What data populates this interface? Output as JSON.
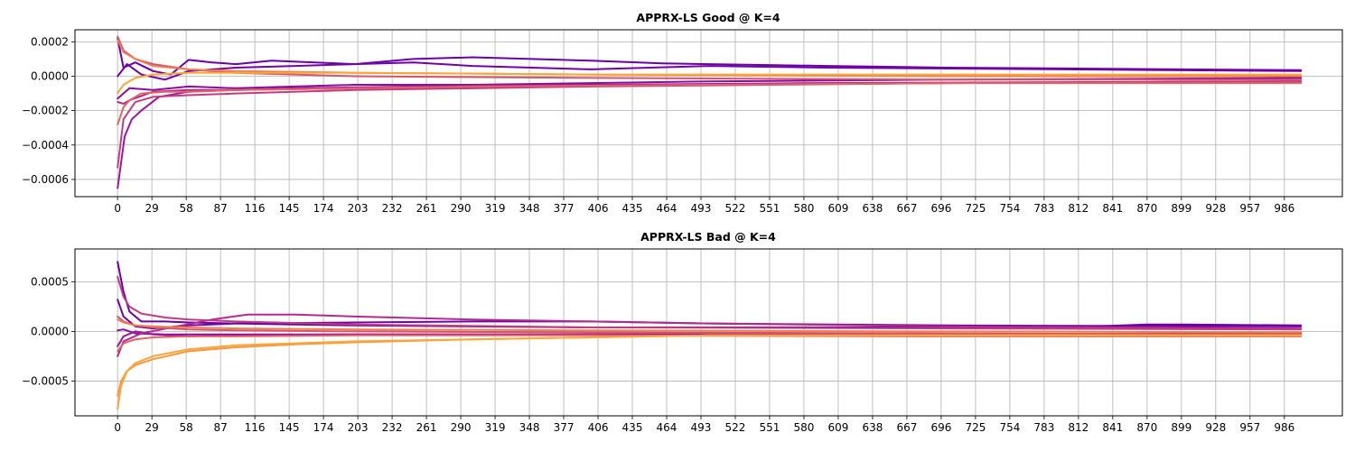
{
  "chart_data": [
    {
      "type": "line",
      "title": "APPRX-LS Good @ K=4",
      "xlabel": "",
      "ylabel": "",
      "xlim": [
        -36,
        1035
      ],
      "ylim": [
        -0.0007,
        0.00027
      ],
      "x_ticks": [
        0,
        29,
        58,
        87,
        116,
        145,
        174,
        203,
        232,
        261,
        290,
        319,
        348,
        377,
        406,
        435,
        464,
        493,
        522,
        551,
        580,
        609,
        638,
        667,
        696,
        725,
        754,
        783,
        812,
        841,
        870,
        899,
        928,
        957,
        986
      ],
      "y_ticks": [
        0.0002,
        0.0,
        -0.0002,
        -0.0004,
        -0.0006
      ],
      "y_tick_labels": [
        "0.0002",
        "0.0000",
        "−0.0002",
        "−0.0004",
        "−0.0006"
      ],
      "grid": true,
      "colormap": "plasma",
      "series": [
        {
          "color": "#6a00a8",
          "x": [
            0,
            5,
            15,
            30,
            45,
            60,
            80,
            100,
            130,
            200,
            250,
            300,
            350,
            400,
            460,
            500,
            550,
            600,
            700,
            800,
            900,
            1000
          ],
          "y": [
            0.00022,
            5e-05,
            8e-05,
            3e-05,
            1e-05,
            9.5e-05,
            8e-05,
            7e-05,
            9e-05,
            7e-05,
            0.0001,
            0.00011,
            0.0001,
            9e-05,
            7.5e-05,
            7e-05,
            6.5e-05,
            6e-05,
            5e-05,
            4.5e-05,
            4e-05,
            3.5e-05
          ]
        },
        {
          "color": "#7201a8",
          "x": [
            0,
            8,
            20,
            40,
            60,
            100,
            150,
            200,
            250,
            300,
            400,
            500,
            600,
            800,
            1000
          ],
          "y": [
            0.0,
            7e-05,
            1e-05,
            -2e-05,
            3e-05,
            5e-05,
            6e-05,
            7e-05,
            8e-05,
            6e-05,
            4e-05,
            6e-05,
            5e-05,
            4e-05,
            3e-05
          ]
        },
        {
          "color": "#8a0da3",
          "x": [
            0,
            10,
            30,
            60,
            100,
            150,
            200,
            300,
            400,
            500,
            700,
            1000
          ],
          "y": [
            -0.00013,
            -7e-05,
            -8e-05,
            -6e-05,
            -7e-05,
            -6e-05,
            -5e-05,
            -5e-05,
            -4e-05,
            -3e-05,
            -2e-05,
            -1e-05
          ]
        },
        {
          "color": "#9c179e",
          "x": [
            0,
            6,
            12,
            20,
            35,
            60,
            100,
            150,
            250,
            400,
            600,
            1000
          ],
          "y": [
            -0.00065,
            -0.00035,
            -0.00025,
            -0.0002,
            -0.00012,
            -9e-05,
            -8e-05,
            -7e-05,
            -6e-05,
            -5e-05,
            -4e-05,
            -3e-05
          ]
        },
        {
          "color": "#b12a90",
          "x": [
            0,
            5,
            10,
            30,
            60,
            100,
            200,
            300,
            500,
            700,
            1000
          ],
          "y": [
            -0.00015,
            -0.00016,
            -0.00014,
            -9e-05,
            -8e-05,
            -8e-05,
            -7e-05,
            -6e-05,
            -5e-05,
            -4e-05,
            -3e-05
          ]
        },
        {
          "color": "#c23c81",
          "x": [
            0,
            5,
            15,
            30,
            60,
            100,
            200,
            400,
            700,
            1000
          ],
          "y": [
            -0.00053,
            -0.00025,
            -0.00015,
            -0.00012,
            -0.00011,
            -0.0001,
            -8e-05,
            -6e-05,
            -4e-05,
            -3e-05
          ]
        },
        {
          "color": "#d5546e",
          "x": [
            0,
            5,
            15,
            30,
            60,
            100,
            200,
            400,
            700,
            1000
          ],
          "y": [
            0.00023,
            0.00015,
            0.0001,
            7e-05,
            4e-05,
            2e-05,
            0.0,
            -1e-05,
            -2e-05,
            -2e-05
          ]
        },
        {
          "color": "#e16462",
          "x": [
            0,
            5,
            10,
            20,
            40,
            60,
            100,
            200,
            300,
            500,
            700,
            1000
          ],
          "y": [
            -0.00028,
            -0.00018,
            -0.00014,
            -0.0001,
            -9e-05,
            -9e-05,
            -8e-05,
            -7e-05,
            -6e-05,
            -5e-05,
            -4e-05,
            -4e-05
          ]
        },
        {
          "color": "#f07f4f",
          "x": [
            0,
            5,
            15,
            30,
            60,
            100,
            200,
            400,
            700,
            1000
          ],
          "y": [
            0.00021,
            0.00014,
            0.0001,
            6e-05,
            4e-05,
            3e-05,
            2e-05,
            1e-05,
            0.0,
            0.0
          ]
        },
        {
          "color": "#fca636",
          "x": [
            0,
            5,
            15,
            30,
            60,
            100,
            200,
            400,
            700,
            1000
          ],
          "y": [
            -0.0001,
            -5e-05,
            -1e-05,
            1e-05,
            2e-05,
            2e-05,
            2e-05,
            1e-05,
            1e-05,
            1e-05
          ]
        }
      ]
    },
    {
      "type": "line",
      "title": "APPRX-LS Bad @ K=4",
      "xlabel": "",
      "ylabel": "",
      "xlim": [
        -36,
        1035
      ],
      "ylim": [
        -0.00085,
        0.00083
      ],
      "x_ticks": [
        0,
        29,
        58,
        87,
        116,
        145,
        174,
        203,
        232,
        261,
        290,
        319,
        348,
        377,
        406,
        435,
        464,
        493,
        522,
        551,
        580,
        609,
        638,
        667,
        696,
        725,
        754,
        783,
        812,
        841,
        870,
        899,
        928,
        957,
        986
      ],
      "y_ticks": [
        0.0005,
        0.0,
        -0.0005
      ],
      "y_tick_labels": [
        "0.0005",
        "0.0000",
        "−0.0005"
      ],
      "grid": true,
      "colormap": "plasma",
      "series": [
        {
          "color": "#6a00a8",
          "x": [
            0,
            5,
            10,
            20,
            40,
            60,
            100,
            150,
            200,
            300,
            400,
            500,
            600,
            800,
            870,
            900,
            1000
          ],
          "y": [
            0.0007,
            0.0004,
            0.0002,
            0.0001,
            0.0001,
            9e-05,
            8e-05,
            7e-05,
            6e-05,
            5e-05,
            4e-05,
            4e-05,
            4e-05,
            4e-05,
            7e-05,
            7e-05,
            6e-05
          ]
        },
        {
          "color": "#7201a8",
          "x": [
            0,
            5,
            15,
            30,
            60,
            100,
            200,
            300,
            400,
            500,
            700,
            1000
          ],
          "y": [
            0.00032,
            0.00015,
            5e-05,
            3e-05,
            6e-05,
            8e-05,
            9e-05,
            0.0001,
            0.0001,
            8e-05,
            6e-05,
            5e-05
          ]
        },
        {
          "color": "#8a0da3",
          "x": [
            0,
            5,
            15,
            40,
            80,
            150,
            300,
            500,
            700,
            1000
          ],
          "y": [
            1e-05,
            2e-05,
            -2e-05,
            -3e-05,
            -3e-05,
            -3e-05,
            -3e-05,
            -3e-05,
            -3e-05,
            -3e-05
          ]
        },
        {
          "color": "#9c179e",
          "x": [
            0,
            5,
            15,
            30,
            60,
            100,
            200,
            400,
            700,
            1000
          ],
          "y": [
            -0.00015,
            -5e-05,
            0.0,
            -3e-05,
            -5e-05,
            -4e-05,
            -3e-05,
            -3e-05,
            -3e-05,
            -2e-05
          ]
        },
        {
          "color": "#b12a90",
          "x": [
            0,
            5,
            20,
            50,
            80,
            110,
            150,
            200,
            300,
            400,
            500,
            700,
            1000
          ],
          "y": [
            -0.00025,
            -0.0001,
            -2e-05,
            5e-05,
            0.00012,
            0.00017,
            0.00017,
            0.00015,
            0.00012,
            0.0001,
            8e-05,
            5e-05,
            3e-05
          ]
        },
        {
          "color": "#c23c81",
          "x": [
            0,
            5,
            10,
            20,
            40,
            60,
            100,
            200,
            400,
            700,
            1000
          ],
          "y": [
            0.00055,
            0.00035,
            0.00025,
            0.00018,
            0.00014,
            0.00012,
            0.0001,
            7e-05,
            4e-05,
            3e-05,
            2e-05
          ]
        },
        {
          "color": "#d5546e",
          "x": [
            0,
            5,
            15,
            30,
            60,
            100,
            200,
            400,
            700,
            1000
          ],
          "y": [
            0.00015,
            0.0001,
            6e-05,
            4e-05,
            2e-05,
            1e-05,
            0.0,
            -1e-05,
            -2e-05,
            -3e-05
          ]
        },
        {
          "color": "#e16462",
          "x": [
            0,
            5,
            15,
            30,
            60,
            100,
            200,
            400,
            700,
            1000
          ],
          "y": [
            -0.0002,
            -0.00012,
            -8e-05,
            -6e-05,
            -5e-05,
            -5e-05,
            -4e-05,
            -4e-05,
            -5e-05,
            -5e-05
          ]
        },
        {
          "color": "#f07f4f",
          "x": [
            0,
            5,
            15,
            30,
            60,
            100,
            200,
            400,
            700,
            1000
          ],
          "y": [
            0.00012,
            9e-05,
            6e-05,
            5e-05,
            4e-05,
            3e-05,
            2e-05,
            1e-05,
            0.0,
            -1e-05
          ]
        },
        {
          "color": "#f89540",
          "x": [
            0,
            3,
            8,
            15,
            30,
            60,
            100,
            150,
            200,
            300,
            400,
            500,
            700,
            1000
          ],
          "y": [
            -0.00065,
            -0.0005,
            -0.0004,
            -0.00034,
            -0.00028,
            -0.0002,
            -0.00016,
            -0.00013,
            -0.00011,
            -8e-05,
            -6e-05,
            -4e-05,
            -4e-05,
            -4e-05
          ]
        },
        {
          "color": "#fca636",
          "x": [
            0,
            3,
            8,
            15,
            30,
            60,
            100,
            150,
            200,
            300,
            400,
            500,
            700,
            1000
          ],
          "y": [
            -0.00078,
            -0.00055,
            -0.0004,
            -0.00032,
            -0.00025,
            -0.00018,
            -0.00014,
            -0.00012,
            -0.0001,
            -8e-05,
            -6e-05,
            -4e-05,
            -4e-05,
            -4e-05
          ]
        }
      ]
    }
  ]
}
